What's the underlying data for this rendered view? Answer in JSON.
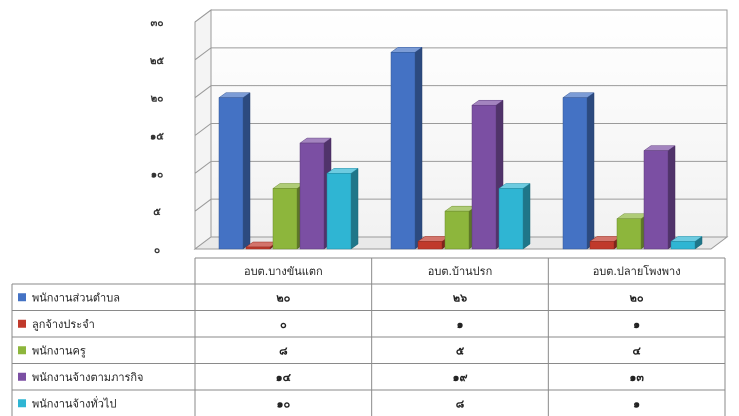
{
  "chart_data": {
    "type": "bar",
    "title": "",
    "xlabel": "",
    "ylabel": "",
    "ylim": [
      0,
      30
    ],
    "yticks": [
      0,
      5,
      10,
      15,
      20,
      25,
      30
    ],
    "ytick_labels": [
      "๐",
      "๕",
      "๑๐",
      "๑๕",
      "๒๐",
      "๒๕",
      "๓๐"
    ],
    "grid": true,
    "legend": "data-table-left",
    "categories": [
      "อบต.บางขันแตก",
      "อบต.บ้านปรก",
      "อบต.ปลายโพงพาง"
    ],
    "series": [
      {
        "name": "พนักงานส่วนตำบล",
        "color": "#4472C4",
        "values": [
          20,
          26,
          20
        ],
        "labels": [
          "๒๐",
          "๒๖",
          "๒๐"
        ]
      },
      {
        "name": "ลูกจ้างประจำ",
        "color": "#C0392B",
        "values": [
          0,
          1,
          1
        ],
        "labels": [
          "๐",
          "๑",
          "๑"
        ]
      },
      {
        "name": "พนักงานครู",
        "color": "#8DB63C",
        "values": [
          8,
          5,
          4
        ],
        "labels": [
          "๘",
          "๕",
          "๔"
        ]
      },
      {
        "name": "พนักงานจ้างตามภารกิจ",
        "color": "#7B4FA3",
        "values": [
          14,
          19,
          13
        ],
        "labels": [
          "๑๔",
          "๑๙",
          "๑๓"
        ]
      },
      {
        "name": "พนักงานจ้างทั่วไป",
        "color": "#2FB5D3",
        "values": [
          10,
          8,
          1
        ],
        "labels": [
          "๑๐",
          "๘",
          "๑"
        ]
      }
    ]
  }
}
